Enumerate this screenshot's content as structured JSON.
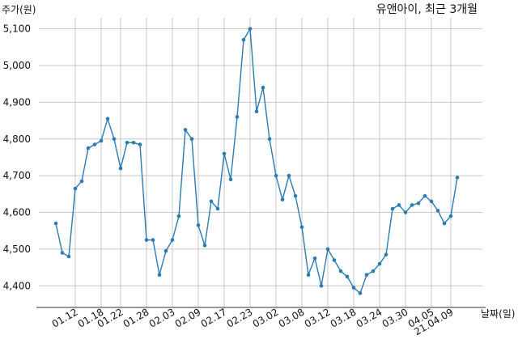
{
  "chart_data": {
    "type": "line",
    "title": "유앤아이, 최근 3개월",
    "ylabel": "주가(원)",
    "xlabel": "날짜(일)",
    "ylim": [
      4350,
      5130
    ],
    "yticks": [
      4400,
      4500,
      4600,
      4700,
      4800,
      4900,
      5000,
      5100
    ],
    "ytick_labels": [
      "4,400",
      "4,500",
      "4,600",
      "4,700",
      "4,800",
      "4,900",
      "5,000",
      "5,100"
    ],
    "x_tick_labels": [
      "01.12",
      "01.18",
      "01.22",
      "01.28",
      "02.03",
      "02.09",
      "02.17",
      "02.23",
      "03.02",
      "03.08",
      "03.12",
      "03.18",
      "03.24",
      "03.30",
      "04.05",
      "21.04.09"
    ],
    "x_tick_index": [
      3,
      7,
      10,
      14,
      18,
      22,
      26,
      30,
      34,
      38,
      42,
      46,
      50,
      54,
      58,
      61
    ],
    "grid": true,
    "colors": {
      "line": "#2b7bb4",
      "grid": "#c8c8c8"
    },
    "series": [
      {
        "values": [
          4570,
          4490,
          4480,
          4665,
          4685,
          4775,
          4785,
          4795,
          4855,
          4800,
          4720,
          4790,
          4790,
          4785,
          4525,
          4525,
          4430,
          4495,
          4525,
          4590,
          4825,
          4800,
          4565,
          4510,
          4630,
          4610,
          4760,
          4690,
          4860,
          5070,
          5100,
          4875,
          4940,
          4800,
          4700,
          4635,
          4700,
          4645,
          4560,
          4430,
          4475,
          4400,
          4500,
          4470,
          4440,
          4425,
          4395,
          4380,
          4430,
          4440,
          4460,
          4485,
          4610,
          4620,
          4600,
          4620,
          4625,
          4645,
          4630,
          4605,
          4570,
          4590,
          4695
        ]
      }
    ]
  }
}
